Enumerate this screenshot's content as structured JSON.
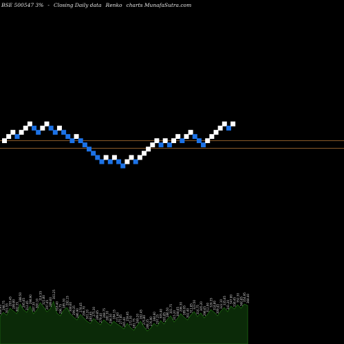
{
  "header": {
    "ticker": "BSE 500547 3%",
    "separator": "-",
    "desc": "Closing Daily data",
    "type_label": "Renko",
    "site": "charts MunafaSutra.com"
  },
  "colors": {
    "background": "#000000",
    "up_brick": "#ffffff",
    "down_brick": "#1c72e6",
    "ref_line": "#8a5a2a",
    "volume_fill": "#0b2a08",
    "volume_stroke": "#1f6a12",
    "label": "#d8d8d8"
  },
  "chart_data": {
    "type": "renko",
    "brick_up_color": "#ffffff",
    "brick_down_color": "#1c72e6",
    "bricks": [
      {
        "level": 0,
        "dir": "up"
      },
      {
        "level": 1,
        "dir": "up"
      },
      {
        "level": 2,
        "dir": "up"
      },
      {
        "level": 1,
        "dir": "down"
      },
      {
        "level": 2,
        "dir": "up"
      },
      {
        "level": 3,
        "dir": "up"
      },
      {
        "level": 4,
        "dir": "up"
      },
      {
        "level": 3,
        "dir": "down"
      },
      {
        "level": 2,
        "dir": "down"
      },
      {
        "level": 3,
        "dir": "up"
      },
      {
        "level": 4,
        "dir": "up"
      },
      {
        "level": 3,
        "dir": "down"
      },
      {
        "level": 2,
        "dir": "down"
      },
      {
        "level": 3,
        "dir": "up"
      },
      {
        "level": 2,
        "dir": "down"
      },
      {
        "level": 1,
        "dir": "down"
      },
      {
        "level": 0,
        "dir": "down"
      },
      {
        "level": 1,
        "dir": "up"
      },
      {
        "level": 0,
        "dir": "down"
      },
      {
        "level": -1,
        "dir": "down"
      },
      {
        "level": -2,
        "dir": "down"
      },
      {
        "level": -3,
        "dir": "down"
      },
      {
        "level": -4,
        "dir": "down"
      },
      {
        "level": -5,
        "dir": "down"
      },
      {
        "level": -4,
        "dir": "up"
      },
      {
        "level": -5,
        "dir": "down"
      },
      {
        "level": -4,
        "dir": "up"
      },
      {
        "level": -5,
        "dir": "down"
      },
      {
        "level": -6,
        "dir": "down"
      },
      {
        "level": -5,
        "dir": "up"
      },
      {
        "level": -4,
        "dir": "up"
      },
      {
        "level": -5,
        "dir": "down"
      },
      {
        "level": -4,
        "dir": "up"
      },
      {
        "level": -3,
        "dir": "up"
      },
      {
        "level": -2,
        "dir": "up"
      },
      {
        "level": -1,
        "dir": "up"
      },
      {
        "level": 0,
        "dir": "up"
      },
      {
        "level": -1,
        "dir": "down"
      },
      {
        "level": 0,
        "dir": "up"
      },
      {
        "level": -1,
        "dir": "down"
      },
      {
        "level": 0,
        "dir": "up"
      },
      {
        "level": 1,
        "dir": "up"
      },
      {
        "level": 0,
        "dir": "down"
      },
      {
        "level": 1,
        "dir": "up"
      },
      {
        "level": 2,
        "dir": "up"
      },
      {
        "level": 1,
        "dir": "down"
      },
      {
        "level": 0,
        "dir": "down"
      },
      {
        "level": -1,
        "dir": "down"
      },
      {
        "level": 0,
        "dir": "up"
      },
      {
        "level": 1,
        "dir": "up"
      },
      {
        "level": 2,
        "dir": "up"
      },
      {
        "level": 3,
        "dir": "up"
      },
      {
        "level": 4,
        "dir": "up"
      },
      {
        "level": 3,
        "dir": "down"
      },
      {
        "level": 4,
        "dir": "up"
      }
    ],
    "reference_lines": [
      0,
      -1
    ],
    "volume_labels": [
      "306.95",
      "298.75",
      "301.55",
      "293.45",
      "289.80",
      "302.35",
      "288.50",
      "295.65",
      "312.45",
      "298.90",
      "287.30",
      "300.10",
      "314.55",
      "321.80",
      "297.45",
      "289.60",
      "303.25",
      "318.40",
      "296.75",
      "285.30",
      "292.15",
      "308.60",
      "299.35",
      "286.90",
      "278.45",
      "294.70",
      "301.20",
      "283.65",
      "275.30",
      "289.85",
      "279.40",
      "268.75",
      "282.30",
      "296.50",
      "284.15",
      "271.60",
      "277.85",
      "265.40",
      "259.95",
      "272.30",
      "281.75",
      "269.20",
      "262.45",
      "275.80",
      "288.35",
      "276.90",
      "284.60",
      "297.25",
      "305.40",
      "293.85",
      "286.50",
      "301.75",
      "315.20",
      "308.65",
      "296.30",
      "289.95",
      "302.40",
      "311.85",
      "323.50",
      "316.75",
      "305.20",
      "298.65",
      "312.90",
      "326.35",
      "318.80",
      "309.45",
      "322.10",
      "335.65",
      "341.20",
      "347.80",
      "338.45",
      "352.30",
      "360.85",
      "354.95",
      "368.40"
    ],
    "volume_values": [
      40,
      46,
      42,
      52,
      48,
      44,
      58,
      50,
      46,
      55,
      44,
      49,
      60,
      54,
      47,
      51,
      62,
      45,
      41,
      49,
      53,
      44,
      39,
      35,
      43,
      38,
      33,
      30,
      37,
      32,
      28,
      35,
      31,
      27,
      33,
      29,
      26,
      22,
      30,
      24,
      20,
      27,
      33,
      25,
      19,
      23,
      30,
      26,
      34,
      29,
      36,
      41,
      32,
      37,
      44,
      39,
      35,
      42,
      47,
      40,
      45,
      38,
      43,
      50,
      46,
      41,
      48,
      53,
      47,
      55,
      51,
      57,
      52,
      58,
      56
    ]
  }
}
